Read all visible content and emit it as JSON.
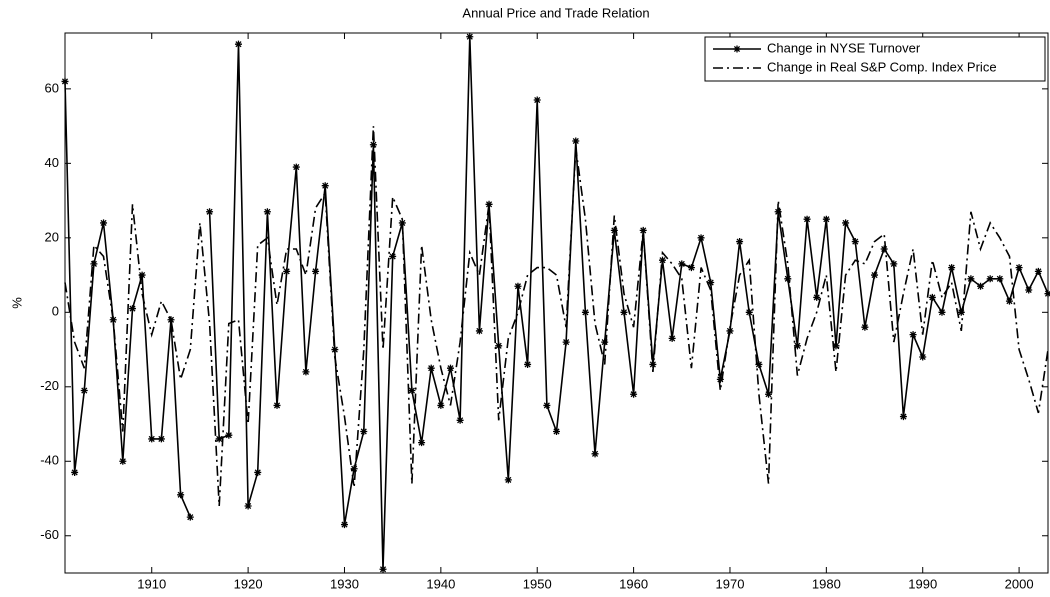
{
  "chart_data": {
    "type": "line",
    "title": "Annual Price and Trade Relation",
    "y_label": "%",
    "x": [
      1901,
      1902,
      1903,
      1904,
      1905,
      1906,
      1907,
      1908,
      1909,
      1910,
      1911,
      1912,
      1913,
      1914,
      1915,
      1916,
      1917,
      1918,
      1919,
      1920,
      1921,
      1922,
      1923,
      1924,
      1925,
      1926,
      1927,
      1928,
      1929,
      1930,
      1931,
      1932,
      1933,
      1934,
      1935,
      1936,
      1937,
      1938,
      1939,
      1940,
      1941,
      1942,
      1943,
      1944,
      1945,
      1946,
      1947,
      1948,
      1949,
      1950,
      1951,
      1952,
      1953,
      1954,
      1955,
      1956,
      1957,
      1958,
      1959,
      1960,
      1961,
      1962,
      1963,
      1964,
      1965,
      1966,
      1967,
      1968,
      1969,
      1970,
      1971,
      1972,
      1973,
      1974,
      1975,
      1976,
      1977,
      1978,
      1979,
      1980,
      1981,
      1982,
      1983,
      1984,
      1985,
      1986,
      1987,
      1988,
      1989,
      1990,
      1991,
      1992,
      1993,
      1994,
      1995,
      1996,
      1997,
      1998,
      1999,
      2000,
      2001,
      2002,
      2003
    ],
    "series": [
      {
        "name": "Change in NYSE Turnover",
        "color": "#000000",
        "line_style": "solid",
        "marker": "star",
        "values": [
          62,
          -43,
          -21,
          13,
          24,
          -2,
          -40,
          1,
          10,
          -34,
          -34,
          -2,
          -49,
          -55,
          null,
          27,
          -34,
          -33,
          72,
          -52,
          -43,
          27,
          -25,
          11,
          39,
          -16,
          11,
          34,
          -10,
          -57,
          -42,
          -32,
          45,
          -69,
          15,
          24,
          -21,
          -35,
          -15,
          -25,
          -15,
          -29,
          74,
          -5,
          29,
          -9,
          -45,
          7,
          -14,
          57,
          -25,
          -32,
          -8,
          46,
          0,
          -38,
          -8,
          22,
          0,
          -22,
          22,
          -14,
          14,
          -7,
          13,
          12,
          20,
          8,
          -18,
          -5,
          19,
          0,
          -14,
          -22,
          27,
          9,
          -9,
          25,
          4,
          25,
          -9,
          24,
          19,
          -4,
          10,
          17,
          13,
          -28,
          -6,
          -12,
          4,
          0,
          12,
          0,
          9,
          7,
          9,
          9,
          3,
          12,
          6,
          11,
          5
        ]
      },
      {
        "name": "Change in Real S&P Comp. Index Price",
        "color": "#000000",
        "line_style": "dashdot",
        "marker": null,
        "values": [
          8,
          -8,
          -15,
          18,
          15,
          -2,
          -32,
          29,
          5,
          -6,
          3,
          -2,
          -18,
          -10,
          24,
          -3,
          -52,
          -3,
          -2,
          -30,
          18,
          20,
          2,
          17,
          17,
          10,
          28,
          32,
          -12,
          -28,
          -47,
          -10,
          50,
          -10,
          31,
          25,
          -46,
          18,
          -2,
          -15,
          -25,
          -8,
          16,
          10,
          29,
          -29,
          -7,
          0,
          10,
          12,
          12,
          10,
          -4,
          44,
          25,
          -3,
          -14,
          26,
          5,
          -4,
          22,
          -16,
          16,
          13,
          9,
          -15,
          12,
          6,
          -21,
          -4,
          10,
          14,
          -22,
          -46,
          30,
          13,
          -17,
          -7,
          0,
          10,
          -16,
          10,
          14,
          13,
          19,
          21,
          -8,
          5,
          17,
          -6,
          14,
          4,
          8,
          -5,
          27,
          17,
          24,
          20,
          15,
          -10,
          -18,
          -27,
          -10
        ]
      }
    ],
    "xlim": [
      1901,
      2003
    ],
    "ylim": [
      -70,
      75
    ],
    "xticks": [
      1910,
      1920,
      1930,
      1940,
      1950,
      1960,
      1970,
      1980,
      1990,
      2000
    ],
    "yticks": [
      -60,
      -40,
      -20,
      0,
      20,
      40,
      60
    ],
    "grid": false,
    "legend": "upper right"
  }
}
